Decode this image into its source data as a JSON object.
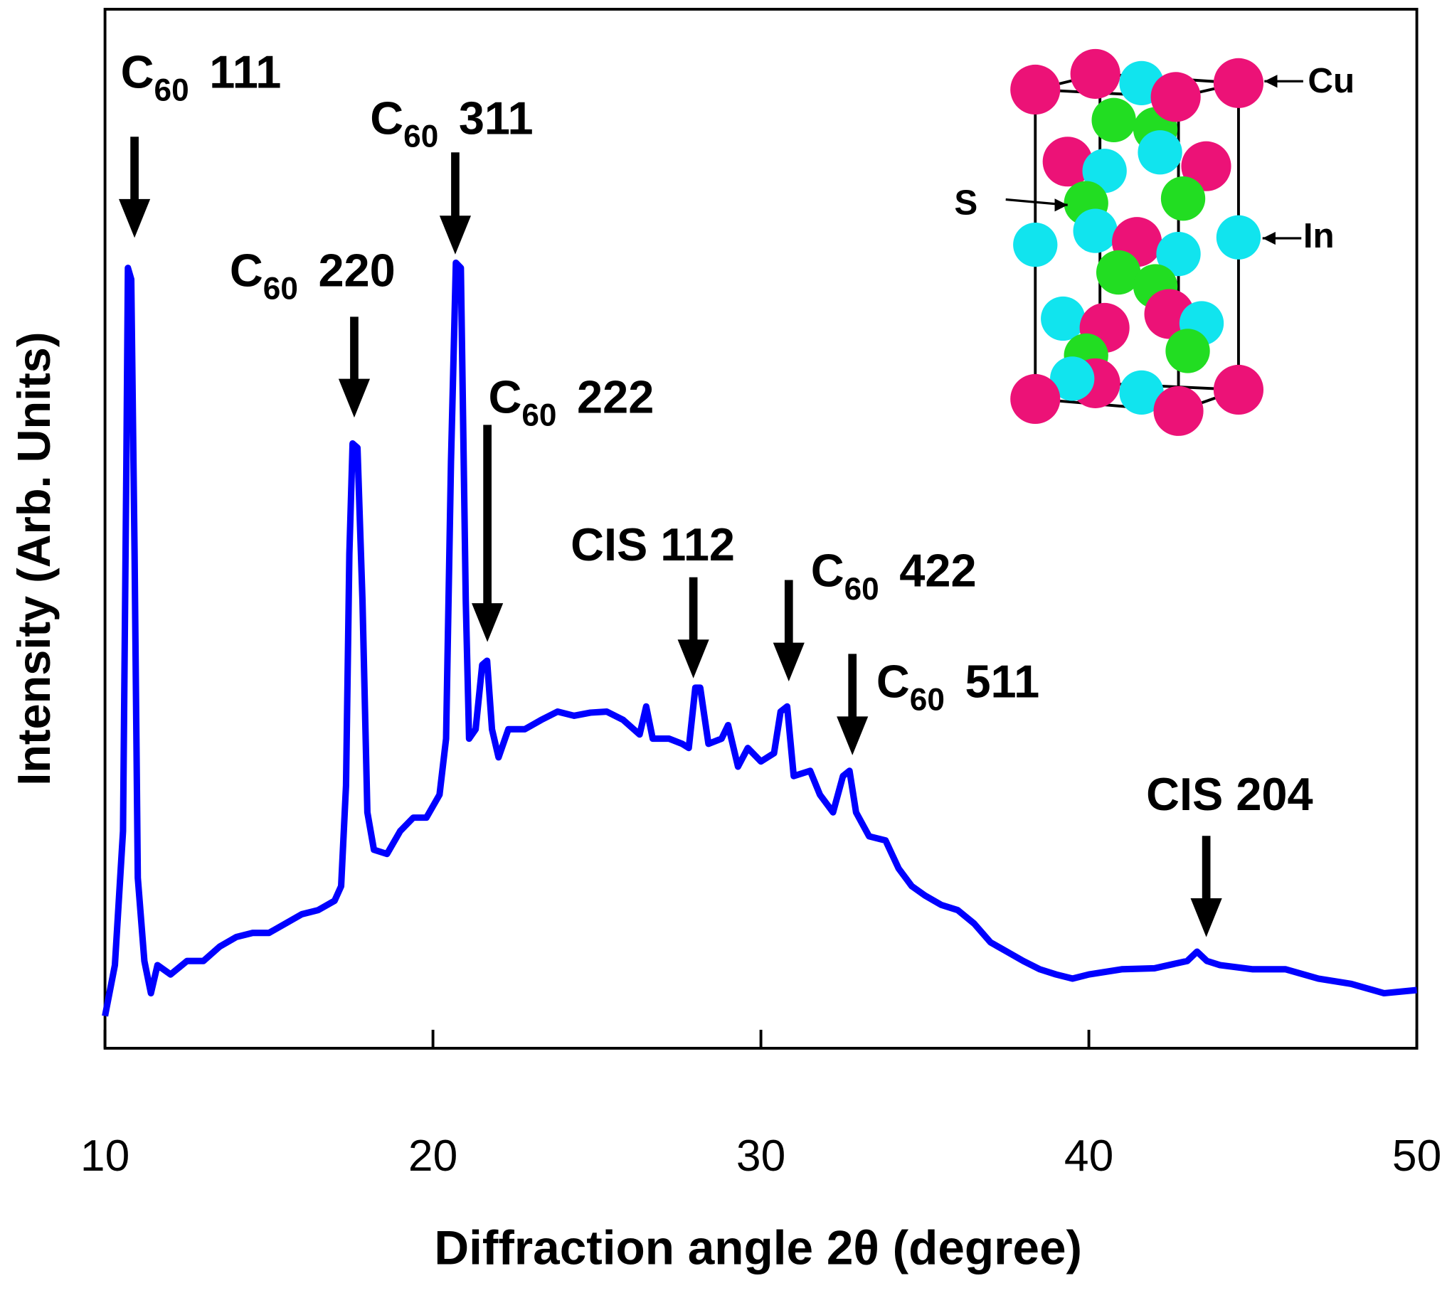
{
  "chart_data": {
    "type": "line",
    "xlabel": "Diffraction angle 2θ (degree)",
    "ylabel": "Intensity (Arb. Units)",
    "color": "#0000ff",
    "xlim": [
      10,
      50
    ],
    "xticks": [
      10,
      20,
      30,
      40,
      50
    ],
    "ylim": [
      0,
      100
    ],
    "x": [
      10.0,
      10.3,
      10.55,
      10.65,
      10.7,
      10.8,
      10.9,
      11.0,
      11.2,
      11.4,
      11.6,
      12.0,
      12.5,
      13.0,
      13.5,
      14.0,
      14.5,
      15.0,
      15.5,
      16.0,
      16.5,
      17.0,
      17.2,
      17.35,
      17.45,
      17.55,
      17.7,
      17.85,
      18.0,
      18.2,
      18.6,
      19.0,
      19.4,
      19.8,
      20.2,
      20.4,
      20.55,
      20.7,
      20.85,
      21.0,
      21.1,
      21.3,
      21.5,
      21.65,
      21.8,
      22.0,
      22.3,
      22.8,
      23.3,
      23.8,
      24.3,
      24.8,
      25.3,
      25.8,
      26.3,
      26.5,
      26.7,
      27.2,
      27.6,
      27.8,
      28.0,
      28.15,
      28.4,
      28.8,
      29.0,
      29.3,
      29.6,
      30.0,
      30.4,
      30.6,
      30.8,
      31.0,
      31.5,
      31.8,
      32.2,
      32.5,
      32.7,
      32.9,
      33.3,
      33.8,
      34.2,
      34.6,
      35.0,
      35.5,
      36.0,
      36.5,
      37.0,
      37.5,
      38.0,
      38.5,
      39.0,
      39.5,
      40.0,
      41.0,
      42.0,
      43.0,
      43.3,
      43.6,
      44.0,
      45.0,
      46.0,
      47.0,
      48.0,
      49.0,
      50.0
    ],
    "values": [
      3.1,
      8,
      20.9,
      56,
      75.1,
      74,
      47.6,
      16.4,
      8.4,
      5.3,
      8,
      7.1,
      8.4,
      8.4,
      9.8,
      10.7,
      11.1,
      11.1,
      12,
      12.9,
      13.3,
      14.2,
      15.6,
      25.3,
      47.6,
      58.2,
      57.8,
      43.1,
      22.7,
      19.1,
      18.7,
      20.9,
      22.2,
      22.2,
      24.4,
      29.8,
      56.4,
      75.6,
      75.1,
      43.1,
      29.8,
      30.7,
      36.9,
      37.3,
      30.7,
      28,
      30.7,
      30.7,
      31.6,
      32.4,
      32,
      32.3,
      32.4,
      31.6,
      30.2,
      32.9,
      29.8,
      29.8,
      29.3,
      28.9,
      34.7,
      34.7,
      29.3,
      29.8,
      31.1,
      27.1,
      28.9,
      27.6,
      28.4,
      32.4,
      32.9,
      26.2,
      26.7,
      24.4,
      22.7,
      26.2,
      26.7,
      22.7,
      20.4,
      20,
      17.3,
      15.6,
      14.7,
      13.8,
      13.3,
      12,
      10.2,
      9.3,
      8.4,
      7.6,
      7.1,
      6.7,
      7.1,
      7.6,
      7.7,
      8.4,
      9.3,
      8.4,
      8,
      7.6,
      7.6,
      6.7,
      6.2,
      5.3,
      5.6
    ],
    "annotations": [
      {
        "text": "C",
        "sub": "60",
        "hkl": "111",
        "x": 10.9,
        "y": 78
      },
      {
        "text": "C",
        "sub": "60",
        "hkl": "220",
        "x": 17.6,
        "y": 60.7
      },
      {
        "text": "C",
        "sub": "60",
        "hkl": "311",
        "x": 20.68,
        "y": 76.4
      },
      {
        "text": "C",
        "sub": "60",
        "hkl": "222",
        "x": 21.66,
        "y": 39.1
      },
      {
        "text": "CIS 112",
        "x": 27.94,
        "y": 35.6
      },
      {
        "text": "C",
        "sub": "60",
        "hkl": "422",
        "x": 30.85,
        "y": 35.3
      },
      {
        "text": "C",
        "sub": "60",
        "hkl": "511",
        "x": 32.79,
        "y": 28.2
      },
      {
        "text": "CIS 204",
        "x": 43.58,
        "y": 10.7
      }
    ],
    "inset_labels": [
      "Cu",
      "S",
      "In"
    ]
  }
}
